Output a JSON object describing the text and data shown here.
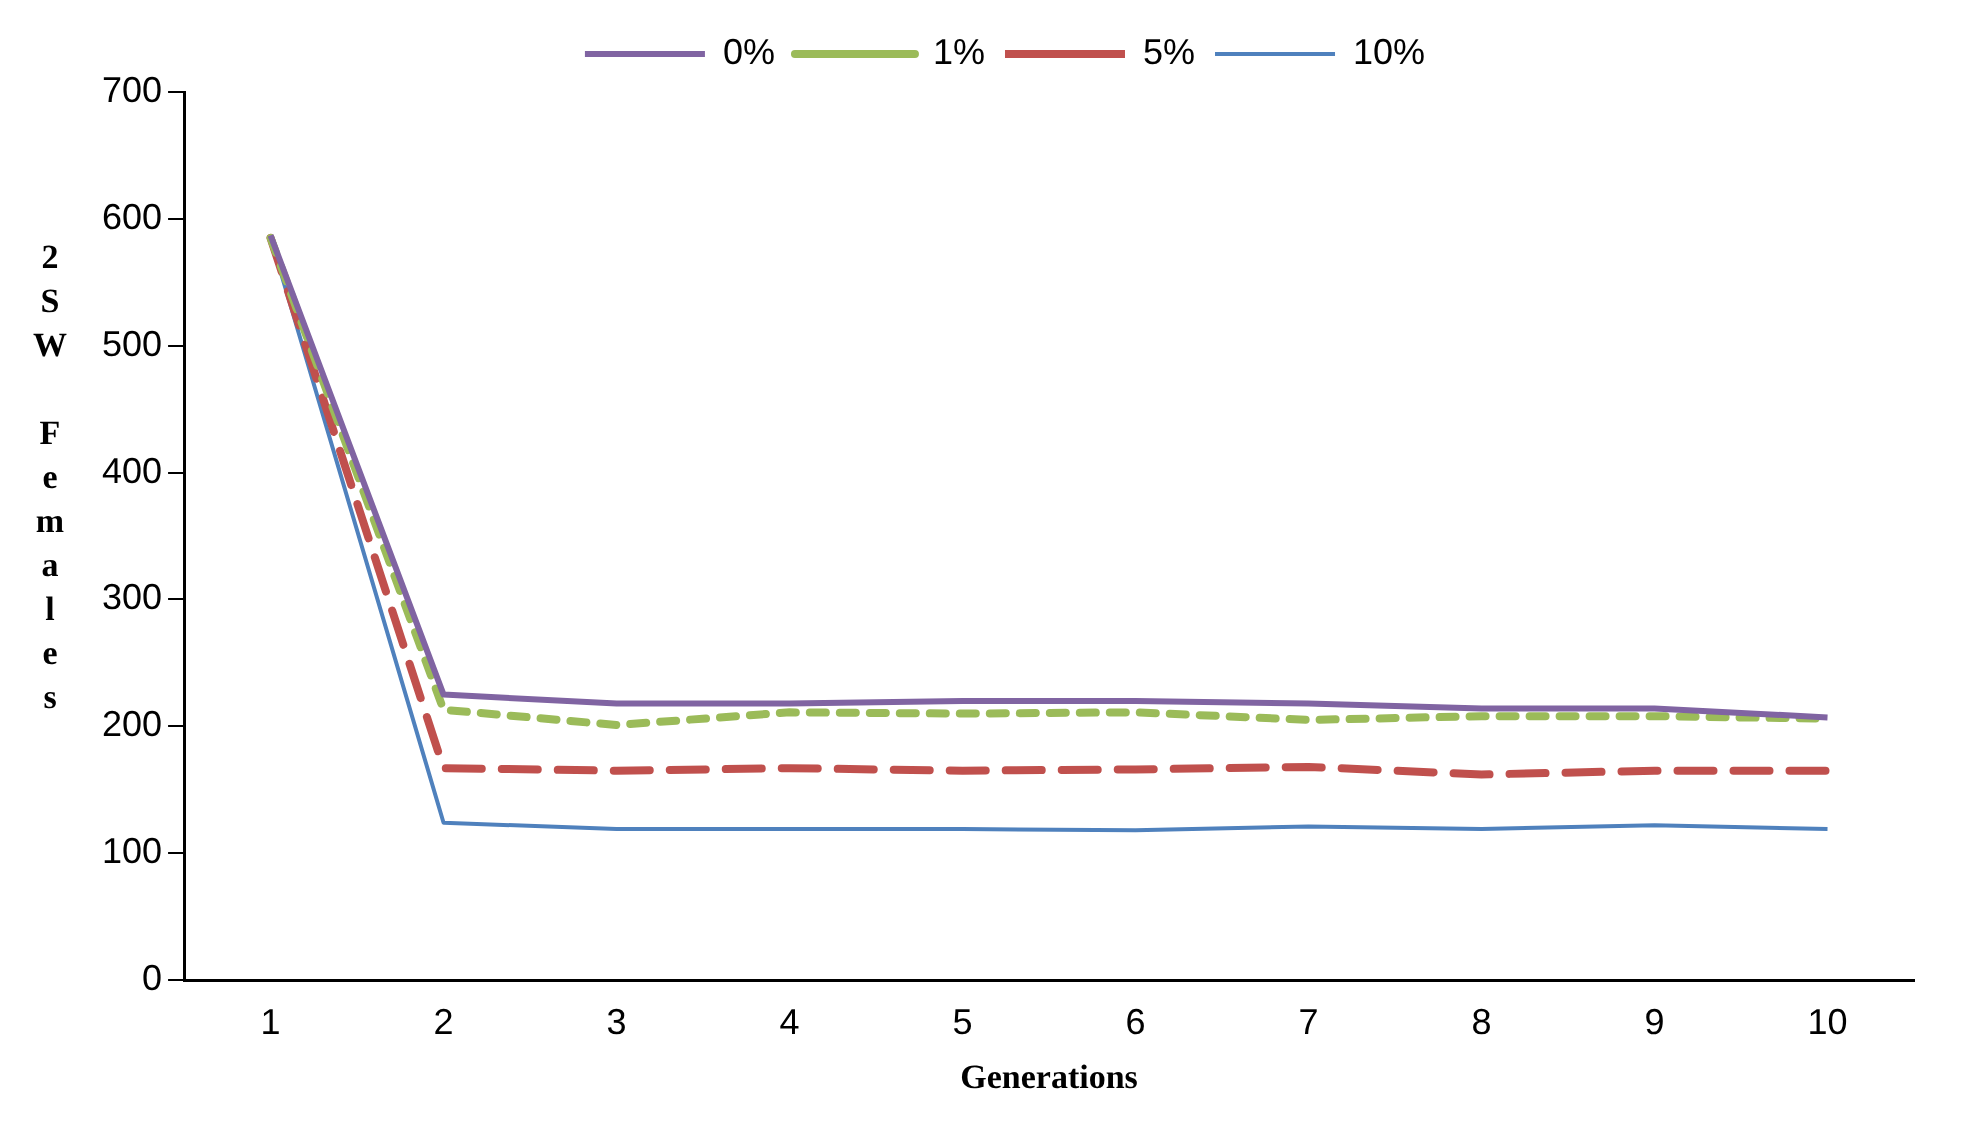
{
  "chart_data": {
    "type": "line",
    "xlabel": "Generations",
    "ylabel": "2SW Females",
    "categories": [
      "1",
      "2",
      "3",
      "4",
      "5",
      "6",
      "7",
      "8",
      "9",
      "10"
    ],
    "series": [
      {
        "name": "0%",
        "color": "#8064a2",
        "line_style": "solid",
        "values": [
          587,
          225,
          218,
          218,
          220,
          220,
          218,
          214,
          214,
          207
        ]
      },
      {
        "name": "1%",
        "color": "#9bbb59",
        "line_style": "dotted",
        "values": [
          585,
          213,
          201,
          211,
          210,
          211,
          205,
          208,
          208,
          206
        ]
      },
      {
        "name": "5%",
        "color": "#c0504d",
        "line_style": "dashed",
        "values": [
          585,
          167,
          165,
          167,
          165,
          166,
          168,
          162,
          165,
          165
        ]
      },
      {
        "name": "10%",
        "color": "#4f81bd",
        "line_style": "solid",
        "values": [
          585,
          124,
          119,
          119,
          119,
          118,
          121,
          119,
          122,
          119
        ]
      }
    ],
    "ylim": [
      0,
      700
    ],
    "yticks": [
      0,
      100,
      200,
      300,
      400,
      500,
      600,
      700
    ],
    "grid": false,
    "legend": "top",
    "marker": "none"
  }
}
